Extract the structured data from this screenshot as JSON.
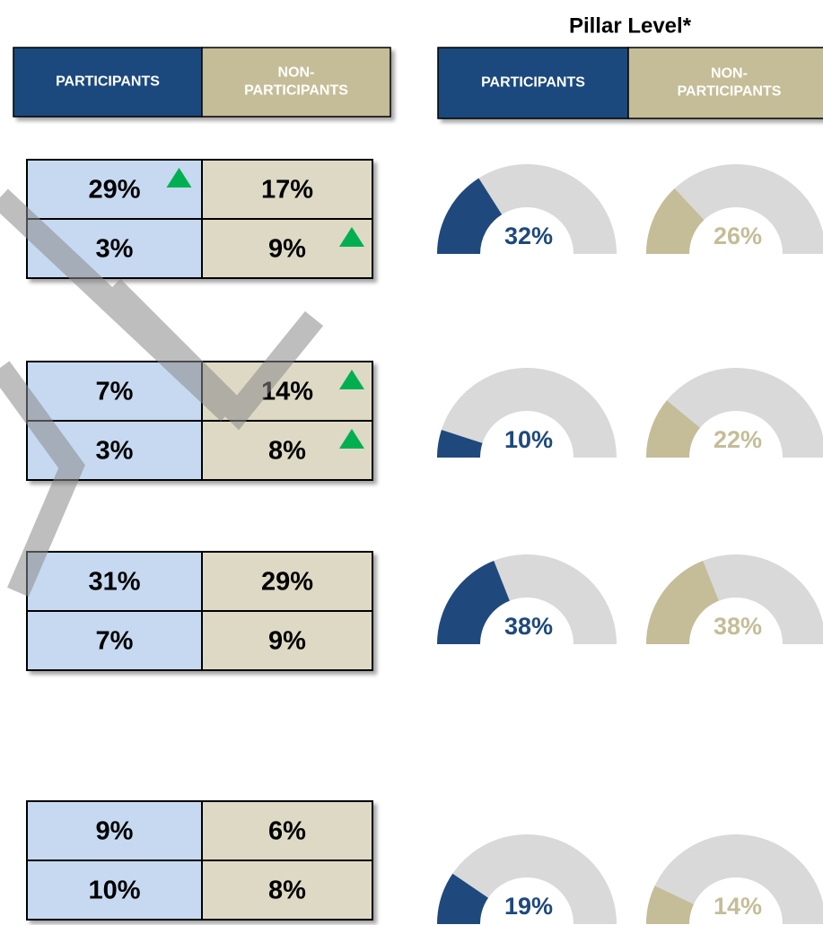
{
  "title": "Pillar Level*",
  "left_header": {
    "participants": "PARTICIPANTS",
    "non_participants": [
      "NON-",
      "PARTICIPANTS"
    ]
  },
  "right_header": {
    "participants": "PARTICIPANTS",
    "non_participants": [
      "NON-",
      "PARTICIPANTS"
    ]
  },
  "groups": [
    {
      "rows": [
        [
          {
            "text": "29%",
            "up": true
          },
          {
            "text": "17%"
          }
        ],
        [
          {
            "text": "3%"
          },
          {
            "text": "9%",
            "up": true
          }
        ]
      ],
      "gauges": [
        {
          "value": 32,
          "label": "32%",
          "color": "#1f497d"
        },
        {
          "value": 26,
          "label": "26%",
          "color": "#c4bd97"
        }
      ]
    },
    {
      "rows": [
        [
          {
            "text": "7%"
          },
          {
            "text": "14%",
            "up": true
          }
        ],
        [
          {
            "text": "3%"
          },
          {
            "text": "8%",
            "up": true
          }
        ]
      ],
      "gauges": [
        {
          "value": 10,
          "label": "10%",
          "color": "#1f497d"
        },
        {
          "value": 22,
          "label": "22%",
          "color": "#c4bd97"
        }
      ]
    },
    {
      "rows": [
        [
          {
            "text": "31%"
          },
          {
            "text": "29%"
          }
        ],
        [
          {
            "text": "7%"
          },
          {
            "text": "9%"
          }
        ]
      ],
      "gauges": [
        {
          "value": 38,
          "label": "38%",
          "color": "#1f497d"
        },
        {
          "value": 38,
          "label": "38%",
          "color": "#c4bd97"
        }
      ]
    },
    {
      "rows": [
        [
          {
            "text": "9%"
          },
          {
            "text": "6%"
          }
        ],
        [
          {
            "text": "10%"
          },
          {
            "text": "8%"
          }
        ]
      ],
      "gauges": [
        {
          "value": 19,
          "label": "19%",
          "color": "#1f497d"
        },
        {
          "value": 14,
          "label": "14%",
          "color": "#c4bd97"
        }
      ]
    }
  ]
}
